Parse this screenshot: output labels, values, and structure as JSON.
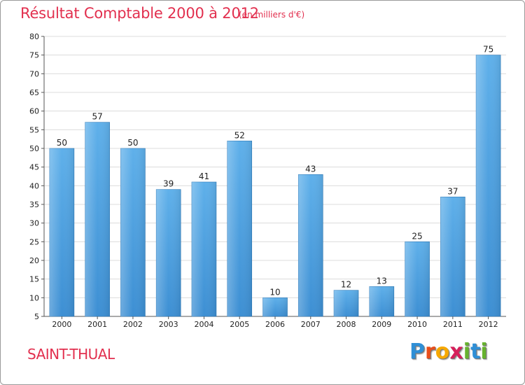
{
  "chart_data": {
    "type": "bar",
    "title": "Résultat Comptable 2000 à 2012",
    "subtitle": "(en milliers d'€)",
    "categories": [
      "2000",
      "2001",
      "2002",
      "2003",
      "2004",
      "2005",
      "2006",
      "2007",
      "2008",
      "2009",
      "2010",
      "2011",
      "2012"
    ],
    "values": [
      50,
      57,
      50,
      39,
      41,
      52,
      10,
      43,
      12,
      13,
      25,
      37,
      75
    ],
    "ylim": [
      5,
      80
    ],
    "yticks": [
      5,
      10,
      15,
      20,
      25,
      30,
      35,
      40,
      45,
      50,
      55,
      60,
      65,
      70,
      75,
      80
    ],
    "grid": true,
    "xlabel": "",
    "ylabel": "",
    "bar_color": "#3d8fd3",
    "bar_highlight_color": "#5fb0ea"
  },
  "footer": {
    "commune": "SAINT-THUAL",
    "logo_letters": [
      "P",
      "r",
      "o",
      "x",
      "i",
      "t",
      "i"
    ],
    "logo_colors": [
      "#2f8fd6",
      "#e94e1b",
      "#f6a800",
      "#d61f5a",
      "#67b32e",
      "#2f8fd6",
      "#67b32e"
    ]
  },
  "colors": {
    "title": "#e2304f",
    "grid": "#dcdcdc",
    "axis": "#555555",
    "background": "#ffffff"
  }
}
